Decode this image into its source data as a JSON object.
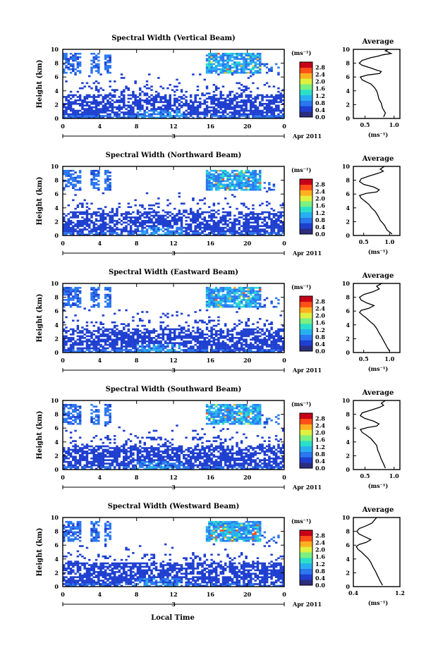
{
  "page": {
    "xlabel_shared": "Local Time"
  },
  "colorbar": {
    "unit_label": "(ms⁻¹)",
    "ticks": [
      "0.0",
      "0.4",
      "0.8",
      "1.2",
      "1.6",
      "2.0",
      "2.4",
      "2.8"
    ],
    "colors": [
      "#2b2d7e",
      "#1e3fd0",
      "#2a77f0",
      "#27b0f0",
      "#2ce0c8",
      "#7cf080",
      "#e0f040",
      "#ffb020",
      "#ff5018",
      "#c80018"
    ]
  },
  "average_panel": {
    "title": "Average",
    "xlabel": "(ms⁻¹)"
  },
  "date_label": {
    "day": "3",
    "month_year": "Apr 2011"
  },
  "chart_data": [
    {
      "type": "heatmap",
      "title": "Spectral Width (Vertical Beam)",
      "ylabel": "Height (km)",
      "xlim": [
        0,
        24
      ],
      "ylim": [
        0,
        10
      ],
      "xticks": [
        "0",
        "4",
        "8",
        "12",
        "16",
        "20",
        "0"
      ],
      "yticks": [
        "0",
        "2",
        "4",
        "6",
        "8",
        "10"
      ],
      "profile": {
        "type": "line",
        "xlim": [
          0.3,
          1.1
        ],
        "xticks": [
          "0.5",
          "1.0"
        ],
        "yticks": [
          "0",
          "2",
          "4",
          "6",
          "8",
          "10"
        ],
        "x": [
          0.82,
          0.85,
          0.8,
          0.78,
          0.74,
          0.72,
          0.7,
          0.66,
          0.6,
          0.52,
          0.45,
          0.42,
          0.55,
          0.75,
          0.78,
          0.7,
          0.6,
          0.45,
          0.4,
          0.45,
          0.6,
          0.72,
          0.8,
          0.95,
          0.9,
          0.85,
          0.9
        ],
        "y": [
          0.2,
          0.8,
          1.5,
          2.2,
          2.8,
          3.5,
          4.0,
          4.5,
          5.0,
          5.3,
          5.6,
          6.0,
          6.3,
          6.5,
          6.8,
          7.0,
          7.3,
          7.7,
          8.0,
          8.4,
          8.8,
          9.0,
          9.2,
          9.4,
          9.6,
          9.8,
          10.0
        ]
      }
    },
    {
      "type": "heatmap",
      "title": "Spectral Width (Northward Beam)",
      "ylabel": "Height (km)",
      "xlim": [
        0,
        24
      ],
      "ylim": [
        0,
        10
      ],
      "xticks": [
        "0",
        "4",
        "8",
        "12",
        "16",
        "20",
        "0"
      ],
      "yticks": [
        "0",
        "2",
        "4",
        "6",
        "8",
        "10"
      ],
      "profile": {
        "type": "line",
        "xlim": [
          0.3,
          1.2
        ],
        "xticks": [
          "0.5",
          "1.0"
        ],
        "yticks": [
          "0",
          "2",
          "4",
          "6",
          "8",
          "10"
        ],
        "x": [
          1.05,
          0.95,
          0.9,
          0.82,
          0.78,
          0.72,
          0.65,
          0.6,
          0.52,
          0.45,
          0.42,
          0.55,
          0.75,
          0.8,
          0.7,
          0.5,
          0.42,
          0.45,
          0.6,
          0.78,
          0.88,
          0.82,
          0.9
        ],
        "y": [
          0.2,
          0.8,
          1.5,
          2.2,
          2.8,
          3.5,
          4.0,
          4.5,
          5.0,
          5.4,
          5.8,
          6.1,
          6.3,
          6.6,
          7.0,
          7.4,
          7.8,
          8.2,
          8.6,
          9.0,
          9.3,
          9.6,
          10.0
        ]
      }
    },
    {
      "type": "heatmap",
      "title": "Spectral Width (Eastward Beam)",
      "ylabel": "Height (km)",
      "xlim": [
        0,
        24
      ],
      "ylim": [
        0,
        10
      ],
      "xticks": [
        "0",
        "4",
        "8",
        "12",
        "16",
        "20",
        "0"
      ],
      "yticks": [
        "0",
        "2",
        "4",
        "6",
        "8",
        "10"
      ],
      "profile": {
        "type": "line",
        "xlim": [
          0.3,
          1.2
        ],
        "xticks": [
          "0.5",
          "1.0"
        ],
        "yticks": [
          "0",
          "2",
          "4",
          "6",
          "8",
          "10"
        ],
        "x": [
          1.0,
          0.95,
          0.9,
          0.85,
          0.8,
          0.75,
          0.7,
          0.62,
          0.55,
          0.48,
          0.42,
          0.45,
          0.6,
          0.7,
          0.55,
          0.45,
          0.42,
          0.5,
          0.68,
          0.8,
          0.75,
          0.85
        ],
        "y": [
          0.2,
          0.8,
          1.5,
          2.2,
          2.8,
          3.5,
          4.0,
          4.5,
          5.0,
          5.4,
          5.8,
          6.1,
          6.4,
          6.8,
          7.2,
          7.6,
          8.0,
          8.4,
          8.8,
          9.2,
          9.6,
          10.0
        ]
      }
    },
    {
      "type": "heatmap",
      "title": "Spectral Width (Southward Beam)",
      "ylabel": "Height (km)",
      "xlim": [
        0,
        24
      ],
      "ylim": [
        0,
        10
      ],
      "xticks": [
        "0",
        "4",
        "8",
        "12",
        "16",
        "20",
        "0"
      ],
      "yticks": [
        "0",
        "2",
        "4",
        "6",
        "8",
        "10"
      ],
      "profile": {
        "type": "line",
        "xlim": [
          0.3,
          1.1
        ],
        "xticks": [
          "0.5",
          "1.0"
        ],
        "yticks": [
          "0",
          "2",
          "4",
          "6",
          "8",
          "10"
        ],
        "x": [
          0.85,
          0.82,
          0.78,
          0.75,
          0.72,
          0.7,
          0.65,
          0.6,
          0.52,
          0.45,
          0.42,
          0.55,
          0.7,
          0.74,
          0.65,
          0.5,
          0.42,
          0.45,
          0.6,
          0.75,
          0.82,
          0.78,
          0.85
        ],
        "y": [
          0.2,
          0.8,
          1.5,
          2.2,
          2.8,
          3.5,
          4.0,
          4.5,
          5.0,
          5.4,
          5.8,
          6.1,
          6.3,
          6.6,
          7.0,
          7.4,
          7.8,
          8.2,
          8.6,
          9.0,
          9.3,
          9.6,
          10.0
        ]
      }
    },
    {
      "type": "heatmap",
      "title": "Spectral Width (Westward Beam)",
      "ylabel": "Height (km)",
      "xlim": [
        0,
        24
      ],
      "ylim": [
        0,
        10
      ],
      "xticks": [
        "0",
        "4",
        "8",
        "12",
        "16",
        "20",
        "0"
      ],
      "yticks": [
        "0",
        "2",
        "4",
        "6",
        "8",
        "10"
      ],
      "profile": {
        "type": "line",
        "xlim": [
          0.4,
          1.2
        ],
        "xticks": [
          "0.4",
          "1.2"
        ],
        "yticks": [
          "0",
          "2",
          "4",
          "6",
          "8",
          "10"
        ],
        "x": [
          0.9,
          0.86,
          0.82,
          0.78,
          0.74,
          0.7,
          0.66,
          0.6,
          0.54,
          0.48,
          0.45,
          0.5,
          0.62,
          0.7,
          0.6,
          0.5,
          0.46,
          0.5,
          0.62,
          0.72,
          0.76,
          0.8
        ],
        "y": [
          0.2,
          0.8,
          1.5,
          2.2,
          2.8,
          3.5,
          4.0,
          4.5,
          5.0,
          5.4,
          5.8,
          6.1,
          6.4,
          6.8,
          7.2,
          7.6,
          8.0,
          8.4,
          8.8,
          9.2,
          9.6,
          10.0
        ]
      }
    }
  ]
}
